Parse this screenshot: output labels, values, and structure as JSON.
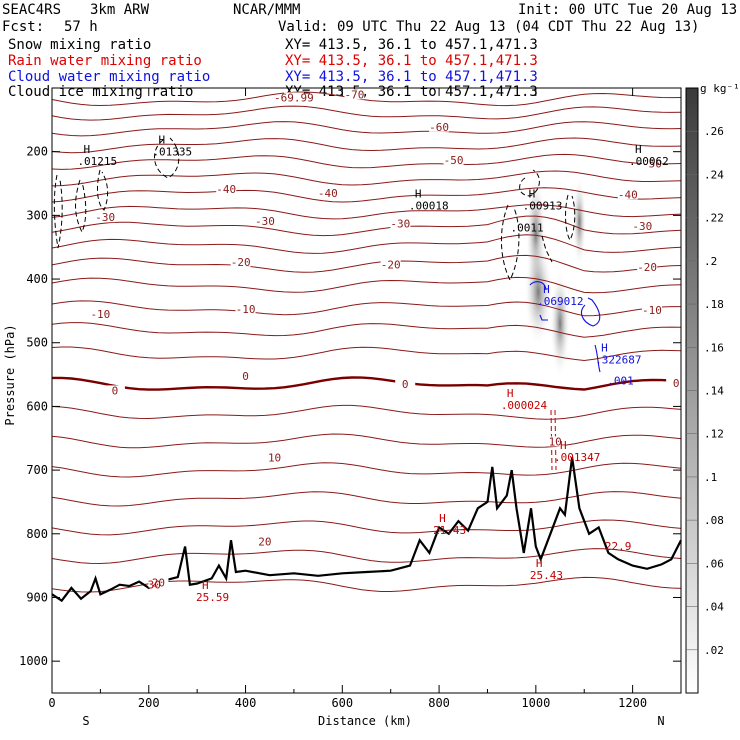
{
  "header": {
    "project": "SEAC4RS",
    "model": "3km ARW",
    "org": "NCAR/MMM",
    "init": "Init: 00 UTC Tue 20 Aug 13",
    "fcst_label": "Fcst:",
    "fcst_value": "57 h",
    "valid": "Valid: 09 UTC Thu 22 Aug 13 (04 CDT Thu 22 Aug 13)",
    "fields": [
      {
        "name": "Snow mixing ratio",
        "xy": "XY= 413.5, 36.1 to 457.1,471.3",
        "color": "#000000"
      },
      {
        "name": "Rain water mixing ratio",
        "xy": "XY= 413.5, 36.1 to 457.1,471.3",
        "color": "#e00000"
      },
      {
        "name": "Cloud water mixing ratio",
        "xy": "XY= 413.5, 36.1 to 457.1,471.3",
        "color": "#1010e0"
      },
      {
        "name": "Cloud ice mixing ratio",
        "xy": "XY= 413.5, 36.1 to 457.1,471.3",
        "color": "#000000"
      }
    ]
  },
  "chart_data": {
    "type": "cross-section",
    "xlabel": "Distance (km)",
    "ylabel": "Pressure (hPa)",
    "xlim": [
      0,
      1300
    ],
    "ylim": [
      1050,
      100
    ],
    "x_ticks": [
      0,
      200,
      400,
      600,
      800,
      1000,
      1200
    ],
    "y_ticks": [
      200,
      300,
      400,
      500,
      600,
      700,
      800,
      900,
      1000
    ],
    "x_end_labels": {
      "left": "S",
      "right": "N"
    },
    "colorbar": {
      "unit": "g kg⁻¹",
      "ticks": [
        0.26,
        0.24,
        0.22,
        0.2,
        0.18,
        0.16,
        0.14,
        0.12,
        0.1,
        0.08,
        0.06,
        0.04,
        0.02
      ],
      "tick_labels": [
        ".26",
        ".24",
        ".22",
        ".2",
        ".18",
        ".16",
        ".14",
        ".12",
        ".1",
        ".08",
        ".06",
        ".04",
        ".02"
      ]
    },
    "temperature_contour_labels": [
      {
        "text": "-69.99",
        "x": 500,
        "p": 118
      },
      {
        "text": "-70",
        "x": 625,
        "p": 113
      },
      {
        "text": "-60",
        "x": 800,
        "p": 164
      },
      {
        "text": "-50",
        "x": 830,
        "p": 216
      },
      {
        "text": "-50",
        "x": 1240,
        "p": 222
      },
      {
        "text": "-40",
        "x": 360,
        "p": 262
      },
      {
        "text": "-40",
        "x": 570,
        "p": 268
      },
      {
        "text": "-40",
        "x": 1190,
        "p": 270
      },
      {
        "text": "-30",
        "x": 440,
        "p": 312
      },
      {
        "text": "-30",
        "x": 720,
        "p": 316
      },
      {
        "text": "-30",
        "x": 1220,
        "p": 320
      },
      {
        "text": "-30",
        "x": 110,
        "p": 306
      },
      {
        "text": "-20",
        "x": 390,
        "p": 376
      },
      {
        "text": "-20",
        "x": 700,
        "p": 380
      },
      {
        "text": "-20",
        "x": 1230,
        "p": 384
      },
      {
        "text": "-10",
        "x": 100,
        "p": 458
      },
      {
        "text": "-10",
        "x": 400,
        "p": 450
      },
      {
        "text": "-10",
        "x": 1240,
        "p": 452
      },
      {
        "text": "0",
        "x": 400,
        "p": 555
      },
      {
        "text": "0",
        "x": 130,
        "p": 578
      },
      {
        "text": "0",
        "x": 730,
        "p": 568
      },
      {
        "text": "0",
        "x": 1290,
        "p": 566
      },
      {
        "text": "10",
        "x": 460,
        "p": 683
      },
      {
        "text": "20",
        "x": 440,
        "p": 815
      },
      {
        "text": "20",
        "x": 220,
        "p": 880
      },
      {
        "text": "10",
        "x": 1040,
        "p": 658
      }
    ],
    "max_labels": [
      {
        "h": "H",
        "value": ".01215",
        "x": 65,
        "p": 205,
        "color": "#000000"
      },
      {
        "h": "H",
        "value": ".01335",
        "x": 220,
        "p": 190,
        "color": "#000000"
      },
      {
        "h": "H",
        "value": ".00018",
        "x": 750,
        "p": 275,
        "color": "#000000"
      },
      {
        "h": "H",
        "value": ".00913",
        "x": 985,
        "p": 275,
        "color": "#000000"
      },
      {
        "h": "",
        "value": ".0011",
        "x": 960,
        "p": 310,
        "color": "#000000"
      },
      {
        "h": "H",
        "value": ".00062",
        "x": 1205,
        "p": 205,
        "color": "#000000"
      },
      {
        "h": "H",
        "value": ".069012",
        "x": 1015,
        "p": 425,
        "color": "#1010e0"
      },
      {
        "h": "H",
        "value": ".322687",
        "x": 1135,
        "p": 517,
        "color": "#1010e0"
      },
      {
        "h": "",
        "value": ".001",
        "x": 1160,
        "p": 550,
        "color": "#1010e0"
      },
      {
        "h": "H",
        "value": ".000024",
        "x": 940,
        "p": 588,
        "color": "#c00000"
      },
      {
        "h": "H",
        "value": ".001347",
        "x": 1050,
        "p": 670,
        "color": "#c00000"
      },
      {
        "h": "H",
        "value": "21.43",
        "x": 800,
        "p": 785,
        "color": "#c00000"
      },
      {
        "h": "H",
        "value": "25.43",
        "x": 1000,
        "p": 855,
        "color": "#c00000"
      },
      {
        "h": "",
        "value": "22.9",
        "x": 1155,
        "p": 810,
        "color": "#c00000"
      },
      {
        "h": "H",
        "value": "25.59",
        "x": 310,
        "p": 890,
        "color": "#c00000"
      },
      {
        "h": "",
        "value": "30",
        "x": 210,
        "p": 870,
        "color": "#c00000"
      }
    ],
    "terrain": {
      "x": [
        0,
        20,
        40,
        60,
        80,
        90,
        100,
        120,
        140,
        160,
        180,
        190,
        200,
        220,
        240,
        260,
        275,
        285,
        300,
        330,
        345,
        360,
        370,
        380,
        400,
        450,
        500,
        550,
        600,
        650,
        700,
        740,
        760,
        780,
        800,
        820,
        840,
        860,
        880,
        900,
        910,
        920,
        940,
        950,
        960,
        975,
        990,
        1000,
        1010,
        1030,
        1050,
        1060,
        1075,
        1090,
        1110,
        1130,
        1150,
        1170,
        1200,
        1230,
        1260,
        1280,
        1300
      ],
      "p": [
        895,
        905,
        885,
        902,
        890,
        870,
        895,
        888,
        880,
        882,
        875,
        880,
        885,
        875,
        872,
        868,
        820,
        880,
        878,
        870,
        850,
        870,
        810,
        860,
        858,
        865,
        862,
        866,
        862,
        860,
        858,
        850,
        810,
        830,
        790,
        800,
        780,
        795,
        760,
        750,
        695,
        760,
        740,
        700,
        760,
        830,
        760,
        820,
        840,
        800,
        760,
        770,
        680,
        760,
        800,
        790,
        830,
        840,
        850,
        855,
        848,
        840,
        810
      ]
    }
  }
}
